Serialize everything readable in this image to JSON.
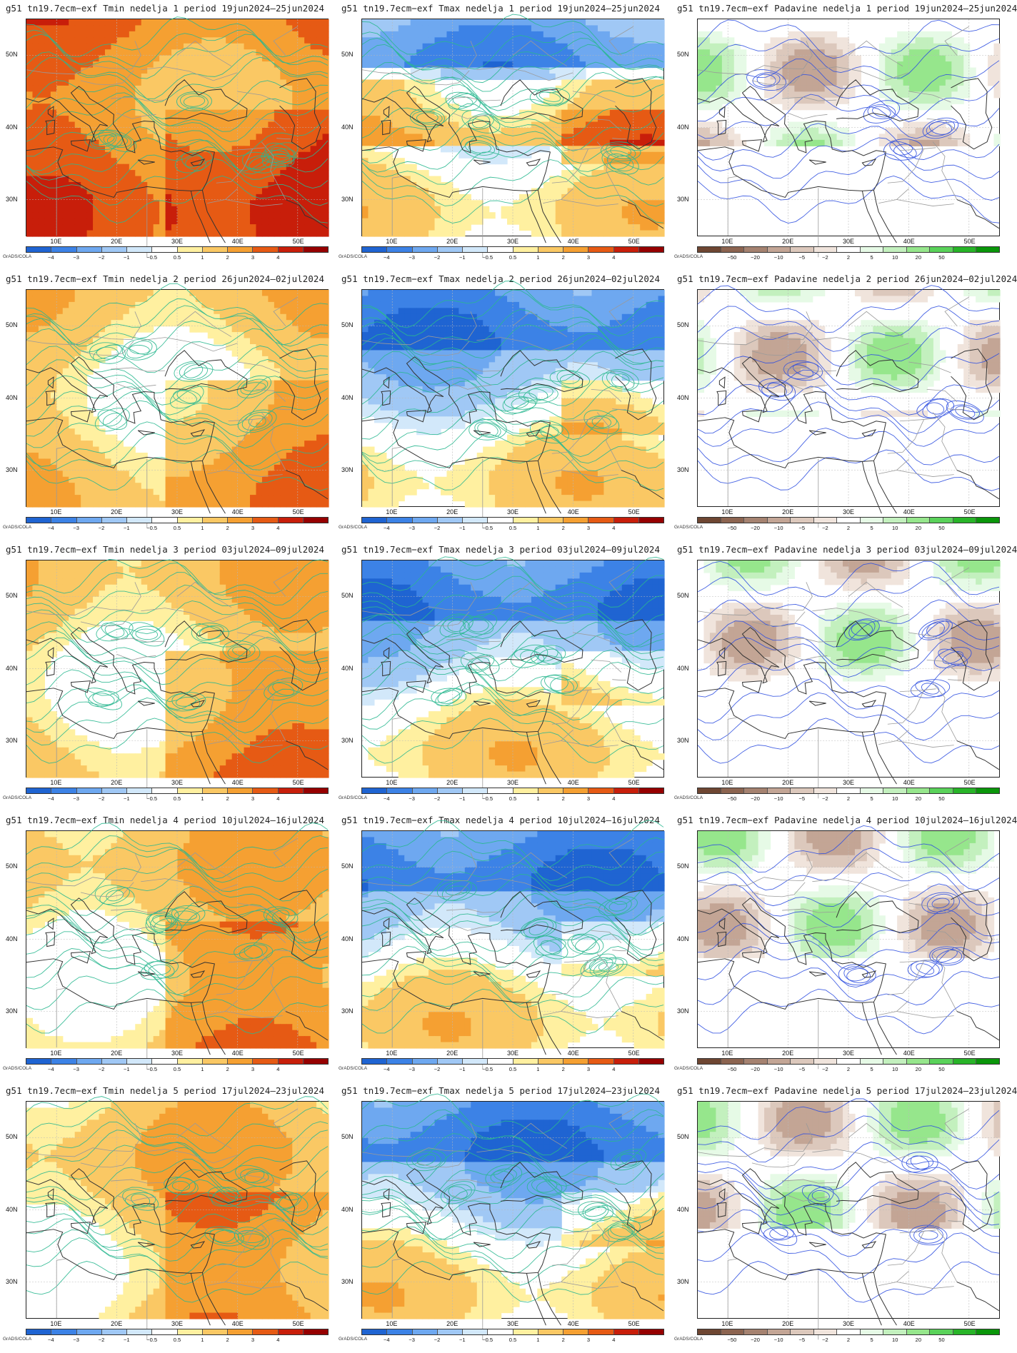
{
  "figure": {
    "rows": [
      {
        "week": "1",
        "panels": [
          {
            "type": "tmin",
            "title": "g51  tn19.7ecm−exf  Tmin  nedelja  1  period  19jun2024—25jun2024"
          },
          {
            "type": "tmax",
            "title": "g51  tn19.7ecm−exf  Tmax  nedelja  1  period  19jun2024—25jun2024"
          },
          {
            "type": "precip",
            "title": "g51  tn19.7ecm−exf  Padavine  nedelja  1  period  19jun2024—25jun2024"
          }
        ]
      },
      {
        "week": "2",
        "panels": [
          {
            "type": "tmin",
            "title": "g51  tn19.7ecm−exf  Tmin  nedelja  2  period  26jun2024—02jul2024"
          },
          {
            "type": "tmax",
            "title": "g51  tn19.7ecm−exf  Tmax  nedelja  2  period  26jun2024—02jul2024"
          },
          {
            "type": "precip",
            "title": "g51  tn19.7ecm−exf  Padavine  nedelja  2  period  26jun2024—02jul2024"
          }
        ]
      },
      {
        "week": "3",
        "panels": [
          {
            "type": "tmin",
            "title": "g51  tn19.7ecm−exf  Tmin  nedelja  3  period  03jul2024—09jul2024"
          },
          {
            "type": "tmax",
            "title": "g51  tn19.7ecm−exf  Tmax  nedelja  3  period  03jul2024—09jul2024"
          },
          {
            "type": "precip",
            "title": "g51  tn19.7ecm−exf  Padavine  nedelja  3  period  03jul2024—09jul2024"
          }
        ]
      },
      {
        "week": "4",
        "panels": [
          {
            "type": "tmin",
            "title": "g51  tn19.7ecm−exf  Tmin  nedelja  4  period  10jul2024—16jul2024"
          },
          {
            "type": "tmax",
            "title": "g51  tn19.7ecm−exf  Tmax  nedelja  4  period  10jul2024—16jul2024"
          },
          {
            "type": "precip",
            "title": "g51  tn19.7ecm−exf  Padavine  nedelja  4  period  10jul2024—16jul2024"
          }
        ]
      },
      {
        "week": "5",
        "panels": [
          {
            "type": "tmin",
            "title": "g51  tn19.7ecm−exf  Tmin  nedelja  5  period  17jul2024—23jul2024"
          },
          {
            "type": "tmax",
            "title": "g51  tn19.7ecm−exf  Tmax  nedelja  5  period  17jul2024—23jul2024"
          },
          {
            "type": "precip",
            "title": "g51  tn19.7ecm−exf  Padavine  nedelja  5  period  17jul2024—23jul2024"
          }
        ]
      }
    ],
    "axes": {
      "lat_labels": [
        "50N",
        "40N",
        "30N"
      ],
      "lon_labels": [
        "10E",
        "20E",
        "30E",
        "40E",
        "50E"
      ]
    },
    "colorbars": {
      "temperature": {
        "ticks": [
          "−4",
          "−3",
          "−2",
          "−1",
          "−0.5",
          "0.5",
          "1",
          "2",
          "3",
          "4"
        ],
        "colors": [
          "#1f64d2",
          "#3c82e6",
          "#6ea8f0",
          "#a0c8f5",
          "#d2e8fa",
          "#ffffff",
          "#fff0a0",
          "#fac864",
          "#f5a032",
          "#e65a14",
          "#c81e0a",
          "#960000"
        ]
      },
      "precip": {
        "ticks": [
          "−50",
          "−20",
          "−10",
          "−5",
          "−2",
          "2",
          "5",
          "10",
          "20",
          "50"
        ],
        "colors": [
          "#6e4632",
          "#8c6450",
          "#a58270",
          "#c3a595",
          "#dcc8bc",
          "#f0e4dc",
          "#ffffff",
          "#e6fae6",
          "#c3f0be",
          "#96e68c",
          "#5ad25a",
          "#28b428",
          "#0a960a"
        ]
      },
      "credit": "GrADS/COLA"
    },
    "colors": {
      "temp_contour": "#2ab890",
      "precip_contour": "#3050e0",
      "coast": "#333333",
      "border": "#9a9a9a"
    }
  }
}
